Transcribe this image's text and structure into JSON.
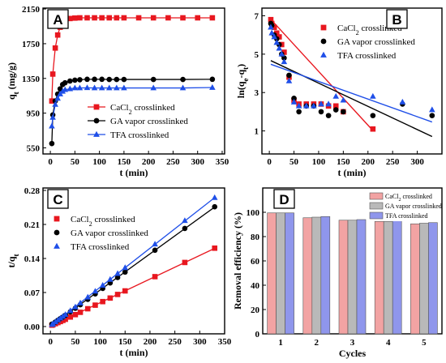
{
  "chart_data": [
    {
      "panel": "A",
      "type": "line",
      "xlabel": "t (min)",
      "ylabel": "q_t (mg/g)",
      "ylabel_main": "q",
      "ylabel_sub": "t",
      "ylabel_unit": " (mg/g)",
      "xlim": [
        -15,
        355
      ],
      "ylim": [
        480,
        2160
      ],
      "xticks": [
        0,
        50,
        100,
        150,
        200,
        250,
        300,
        350
      ],
      "yticks": [
        550,
        950,
        1350,
        1750,
        2150
      ],
      "series": [
        {
          "name": "CaCl2 crosslinked",
          "label_main": "CaCl",
          "label_sub": "2",
          "label_rest": " crosslinked",
          "color": "#e8171f",
          "marker": "square",
          "x": [
            3,
            5,
            10,
            15,
            20,
            25,
            30,
            40,
            50,
            60,
            75,
            90,
            105,
            120,
            135,
            150,
            180,
            210,
            240,
            270,
            300,
            330
          ],
          "y": [
            1090,
            1400,
            1700,
            1850,
            1940,
            1990,
            2020,
            2040,
            2045,
            2048,
            2048,
            2048,
            2048,
            2048,
            2048,
            2048,
            2048,
            2048,
            2048,
            2048,
            2048,
            2048
          ]
        },
        {
          "name": "GA vapor crosslinked",
          "color": "#000000",
          "marker": "circle",
          "x": [
            3,
            5,
            10,
            15,
            20,
            25,
            30,
            40,
            50,
            60,
            75,
            90,
            105,
            120,
            135,
            150,
            210,
            270,
            330
          ],
          "y": [
            600,
            930,
            1090,
            1170,
            1230,
            1280,
            1300,
            1320,
            1330,
            1335,
            1340,
            1340,
            1340,
            1338,
            1338,
            1338,
            1338,
            1338,
            1340
          ]
        },
        {
          "name": "TFA crosslinked",
          "color": "#1f4fe8",
          "marker": "triangle",
          "x": [
            3,
            5,
            10,
            15,
            20,
            25,
            30,
            40,
            50,
            60,
            75,
            90,
            105,
            120,
            135,
            150,
            210,
            270,
            330
          ],
          "y": [
            800,
            900,
            1050,
            1120,
            1170,
            1200,
            1220,
            1230,
            1240,
            1240,
            1242,
            1240,
            1240,
            1240,
            1240,
            1240,
            1240,
            1240,
            1245
          ]
        }
      ],
      "legend": "lower-right"
    },
    {
      "panel": "B",
      "type": "scatter",
      "xlabel": "t (min)",
      "ylabel": "ln(q_e-q_t)",
      "ylabel_main": "ln(q",
      "ylabel_sub1": "e",
      "ylabel_mid": "-q",
      "ylabel_sub2": "t",
      "ylabel_end": ")",
      "xlim": [
        -15,
        350
      ],
      "ylim": [
        -0.2,
        7.4
      ],
      "xticks": [
        0,
        50,
        100,
        150,
        200,
        250,
        300
      ],
      "yticks": [
        1,
        3,
        5,
        7
      ],
      "series": [
        {
          "name": "CaCl2 crosslinked",
          "label_main": "CaCl",
          "label_sub": "2",
          "label_rest": " crosslinked",
          "color": "#e8171f",
          "marker": "square",
          "x": [
            3,
            5,
            10,
            15,
            20,
            25,
            30,
            40,
            50,
            60,
            75,
            90,
            105,
            120,
            135,
            150,
            210
          ],
          "y": [
            6.8,
            6.6,
            6.4,
            6.1,
            5.9,
            5.5,
            5.1,
            3.8,
            2.6,
            2.4,
            2.4,
            2.4,
            2.4,
            2.3,
            2.3,
            2.0,
            1.1
          ],
          "fit": [
            6.9,
            -0.028
          ]
        },
        {
          "name": "GA vapor crosslinked",
          "color": "#000000",
          "marker": "circle",
          "x": [
            3,
            5,
            10,
            15,
            20,
            25,
            30,
            40,
            50,
            60,
            75,
            90,
            105,
            120,
            135,
            150,
            210,
            270,
            330
          ],
          "y": [
            6.6,
            6.5,
            6.0,
            5.8,
            5.5,
            5.0,
            4.8,
            3.9,
            2.7,
            2.0,
            2.3,
            2.3,
            2.0,
            1.8,
            2.1,
            2.0,
            1.8,
            2.4,
            1.8
          ],
          "fit": [
            4.7,
            -0.0121
          ]
        },
        {
          "name": "TFA crosslinked",
          "color": "#1f4fe8",
          "marker": "triangle",
          "x": [
            3,
            5,
            10,
            15,
            20,
            25,
            30,
            40,
            50,
            60,
            75,
            90,
            105,
            120,
            135,
            150,
            210,
            270,
            330
          ],
          "y": [
            6.4,
            6.1,
            5.9,
            5.6,
            5.3,
            5.0,
            4.6,
            3.6,
            2.5,
            2.3,
            2.3,
            2.3,
            2.4,
            2.4,
            2.8,
            2.6,
            2.8,
            2.5,
            2.1
          ],
          "fit": [
            4.5,
            -0.0092
          ]
        }
      ],
      "legend": "top-right"
    },
    {
      "panel": "C",
      "type": "line",
      "xlabel": "t (min)",
      "ylabel": "t/q_t",
      "ylabel_main": "t/q",
      "ylabel_sub": "t",
      "xlim": [
        -15,
        350
      ],
      "ylim": [
        -0.015,
        0.285
      ],
      "xticks": [
        0,
        50,
        100,
        150,
        200,
        250,
        300,
        350
      ],
      "yticks": [
        0.0,
        0.07,
        0.14,
        0.21,
        0.28
      ],
      "ytick_labels": [
        "0.00",
        "0.07",
        "0.14",
        "0.21",
        "0.28"
      ],
      "series": [
        {
          "name": "CaCl2 crosslinked",
          "label_main": "CaCl",
          "label_sub": "2",
          "label_rest": " crosslinked",
          "color": "#e8171f",
          "marker": "square",
          "x": [
            3,
            5,
            10,
            15,
            20,
            25,
            30,
            40,
            50,
            60,
            75,
            90,
            105,
            120,
            135,
            150,
            210,
            270,
            330
          ],
          "y": [
            0.0028,
            0.0036,
            0.0059,
            0.0081,
            0.0103,
            0.0126,
            0.0149,
            0.0196,
            0.0245,
            0.0293,
            0.0366,
            0.044,
            0.0513,
            0.0586,
            0.066,
            0.0733,
            0.1026,
            0.1318,
            0.1612
          ]
        },
        {
          "name": "GA vapor crosslinked",
          "color": "#000000",
          "marker": "circle",
          "x": [
            3,
            5,
            10,
            15,
            20,
            25,
            30,
            40,
            50,
            60,
            75,
            90,
            105,
            120,
            135,
            150,
            210,
            270,
            330
          ],
          "y": [
            0.005,
            0.0054,
            0.0092,
            0.0128,
            0.0163,
            0.0195,
            0.0231,
            0.0303,
            0.0376,
            0.0449,
            0.056,
            0.0672,
            0.0784,
            0.0897,
            0.1009,
            0.1121,
            0.157,
            0.2018,
            0.2463
          ]
        },
        {
          "name": "TFA crosslinked",
          "color": "#1f4fe8",
          "marker": "triangle",
          "x": [
            3,
            5,
            10,
            15,
            20,
            25,
            30,
            40,
            50,
            60,
            75,
            90,
            105,
            120,
            135,
            150,
            210,
            270,
            330
          ],
          "y": [
            0.0038,
            0.0056,
            0.0095,
            0.0134,
            0.0171,
            0.0208,
            0.0246,
            0.0325,
            0.0403,
            0.0484,
            0.0604,
            0.0726,
            0.0847,
            0.0968,
            0.1089,
            0.121,
            0.1694,
            0.2177,
            0.2651
          ]
        }
      ],
      "legend": "upper-left"
    },
    {
      "panel": "D",
      "type": "bar",
      "xlabel": "Cycles",
      "ylabel": "Removal efficiency (%)",
      "categories": [
        "1",
        "2",
        "3",
        "4",
        "5"
      ],
      "ylim": [
        0,
        120
      ],
      "yticks": [
        0,
        20,
        40,
        60,
        80,
        100
      ],
      "series": [
        {
          "name": "CaCl2 crosslinked",
          "label_main": "CaCl",
          "label_sub": "2",
          "label_rest": " crosslinked",
          "color": "#f2a3a3",
          "values": [
            99.5,
            95.5,
            93.5,
            92.5,
            90.5
          ]
        },
        {
          "name": "GA vapor crosslinked",
          "color": "#b9b9b9",
          "values": [
            99.5,
            96,
            93.5,
            92.5,
            91
          ]
        },
        {
          "name": "TFA crosslinked",
          "color": "#8f96ec",
          "values": [
            99.5,
            96.5,
            94,
            93,
            91.5
          ]
        }
      ],
      "legend": "top-right"
    }
  ]
}
